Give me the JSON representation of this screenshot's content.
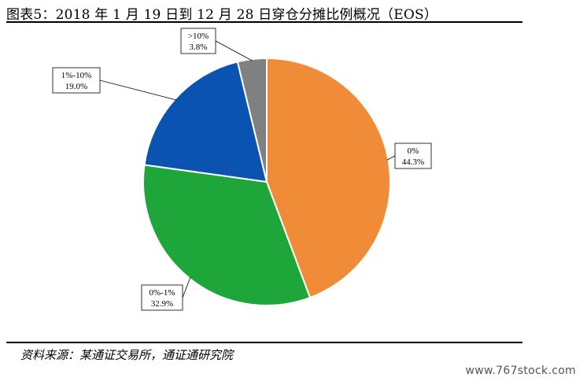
{
  "title": "图表5：2018 年 1 月 19 日到 12 月 28 日穿仓分摊比例概况（EOS）",
  "source": "资料来源：某通证交易所，通证通研究院",
  "site_watermark": "www.767stock.com",
  "chart_data": {
    "type": "pie",
    "title": "图表5：2018 年 1 月 19 日到 12 月 28 日穿仓分摊比例概况（EOS）",
    "start_angle_deg": 0,
    "direction": "clockwise",
    "legend": "none",
    "slices": [
      {
        "label": "0%",
        "value": 44.3,
        "value_label": "44.3%",
        "color": "#f08c38"
      },
      {
        "label": "0%-1%",
        "value": 32.9,
        "value_label": "32.9%",
        "color": "#1ea63a"
      },
      {
        "label": "1%-10%",
        "value": 19.0,
        "value_label": "19.0%",
        "color": "#0b53b0"
      },
      {
        "label": ">10%",
        "value": 3.8,
        "value_label": "3.8%",
        "color": "#808080"
      }
    ]
  }
}
